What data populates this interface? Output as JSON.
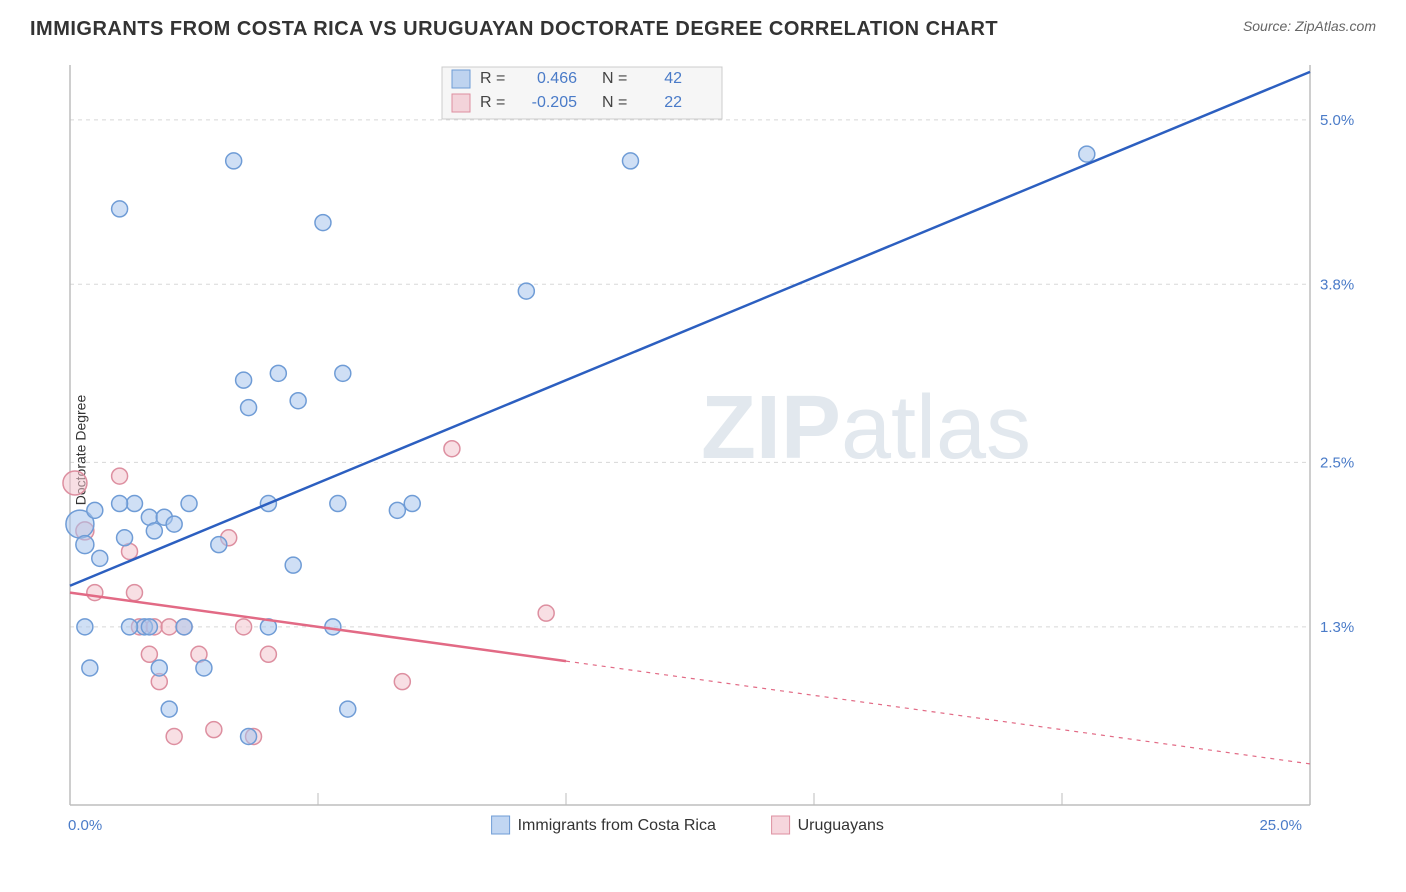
{
  "header": {
    "title": "IMMIGRANTS FROM COSTA RICA VS URUGUAYAN DOCTORATE DEGREE CORRELATION CHART",
    "source": "Source: ZipAtlas.com"
  },
  "watermark": {
    "text_bold": "ZIP",
    "text_light": "atlas"
  },
  "chart": {
    "type": "scatter_with_trend",
    "ylabel": "Doctorate Degree",
    "xlim": [
      0,
      25
    ],
    "ylim": [
      0,
      5.4
    ],
    "x_tick_left": "0.0%",
    "x_tick_right": "25.0%",
    "y_ticks": [
      {
        "value": 1.3,
        "label": "1.3%"
      },
      {
        "value": 2.5,
        "label": "2.5%"
      },
      {
        "value": 3.8,
        "label": "3.8%"
      },
      {
        "value": 5.0,
        "label": "5.0%"
      }
    ],
    "x_gridlines_at": [
      5,
      10,
      15,
      20,
      25
    ],
    "background_color": "#ffffff",
    "grid_color": "#d8d8d8",
    "axis_color": "#bdbdbd",
    "series": {
      "costa_rica": {
        "label": "Immigrants from Costa Rica",
        "fill_color": "#a7c4ec",
        "stroke_color": "#6f9cd6",
        "line_color": "#2c5fc0",
        "R": "0.466",
        "N": "42",
        "trend": {
          "x1": 0,
          "y1": 1.6,
          "x2": 25,
          "y2": 5.35,
          "dashed_from_x": null
        },
        "points": [
          {
            "x": 0.2,
            "y": 2.05,
            "r": 14
          },
          {
            "x": 0.3,
            "y": 1.9,
            "r": 9
          },
          {
            "x": 0.5,
            "y": 2.15,
            "r": 8
          },
          {
            "x": 0.3,
            "y": 1.3,
            "r": 8
          },
          {
            "x": 0.4,
            "y": 1.0,
            "r": 8
          },
          {
            "x": 0.6,
            "y": 1.8,
            "r": 8
          },
          {
            "x": 1.0,
            "y": 4.35,
            "r": 8
          },
          {
            "x": 1.3,
            "y": 2.2,
            "r": 8
          },
          {
            "x": 1.6,
            "y": 2.1,
            "r": 8
          },
          {
            "x": 1.7,
            "y": 2.0,
            "r": 8
          },
          {
            "x": 1.9,
            "y": 2.1,
            "r": 8
          },
          {
            "x": 1.5,
            "y": 1.3,
            "r": 8
          },
          {
            "x": 1.6,
            "y": 1.3,
            "r": 8
          },
          {
            "x": 1.8,
            "y": 1.0,
            "r": 8
          },
          {
            "x": 2.0,
            "y": 0.7,
            "r": 8
          },
          {
            "x": 2.3,
            "y": 1.3,
            "r": 8
          },
          {
            "x": 2.4,
            "y": 2.2,
            "r": 8
          },
          {
            "x": 2.7,
            "y": 1.0,
            "r": 8
          },
          {
            "x": 3.0,
            "y": 1.9,
            "r": 8
          },
          {
            "x": 3.3,
            "y": 4.7,
            "r": 8
          },
          {
            "x": 3.5,
            "y": 3.1,
            "r": 8
          },
          {
            "x": 3.6,
            "y": 2.9,
            "r": 8
          },
          {
            "x": 3.6,
            "y": 0.5,
            "r": 8
          },
          {
            "x": 4.0,
            "y": 1.3,
            "r": 8
          },
          {
            "x": 4.0,
            "y": 2.2,
            "r": 8
          },
          {
            "x": 4.2,
            "y": 3.15,
            "r": 8
          },
          {
            "x": 4.5,
            "y": 1.75,
            "r": 8
          },
          {
            "x": 4.6,
            "y": 2.95,
            "r": 8
          },
          {
            "x": 5.1,
            "y": 4.25,
            "r": 8
          },
          {
            "x": 5.3,
            "y": 1.3,
            "r": 8
          },
          {
            "x": 5.4,
            "y": 2.2,
            "r": 8
          },
          {
            "x": 5.5,
            "y": 3.15,
            "r": 8
          },
          {
            "x": 5.6,
            "y": 0.7,
            "r": 8
          },
          {
            "x": 6.6,
            "y": 2.15,
            "r": 8
          },
          {
            "x": 6.9,
            "y": 2.2,
            "r": 8
          },
          {
            "x": 9.2,
            "y": 3.75,
            "r": 8
          },
          {
            "x": 11.3,
            "y": 4.7,
            "r": 8
          },
          {
            "x": 20.5,
            "y": 4.75,
            "r": 8
          },
          {
            "x": 1.1,
            "y": 1.95,
            "r": 8
          },
          {
            "x": 1.0,
            "y": 2.2,
            "r": 8
          },
          {
            "x": 2.1,
            "y": 2.05,
            "r": 8
          },
          {
            "x": 1.2,
            "y": 1.3,
            "r": 8
          }
        ]
      },
      "uruguayans": {
        "label": "Uruguayans",
        "fill_color": "#f2c5ce",
        "stroke_color": "#dd8fa0",
        "line_color": "#e26a85",
        "R": "-0.205",
        "N": "22",
        "trend": {
          "x1": 0,
          "y1": 1.55,
          "x2": 25,
          "y2": 0.3,
          "dashed_from_x": 10
        },
        "points": [
          {
            "x": 0.1,
            "y": 2.35,
            "r": 12
          },
          {
            "x": 0.3,
            "y": 2.0,
            "r": 9
          },
          {
            "x": 0.5,
            "y": 1.55,
            "r": 8
          },
          {
            "x": 1.0,
            "y": 2.4,
            "r": 8
          },
          {
            "x": 1.2,
            "y": 1.85,
            "r": 8
          },
          {
            "x": 1.3,
            "y": 1.55,
            "r": 8
          },
          {
            "x": 1.4,
            "y": 1.3,
            "r": 8
          },
          {
            "x": 1.6,
            "y": 1.1,
            "r": 8
          },
          {
            "x": 1.7,
            "y": 1.3,
            "r": 8
          },
          {
            "x": 1.8,
            "y": 0.9,
            "r": 8
          },
          {
            "x": 2.0,
            "y": 1.3,
            "r": 8
          },
          {
            "x": 2.1,
            "y": 0.5,
            "r": 8
          },
          {
            "x": 2.3,
            "y": 1.3,
            "r": 8
          },
          {
            "x": 2.6,
            "y": 1.1,
            "r": 8
          },
          {
            "x": 3.2,
            "y": 1.95,
            "r": 8
          },
          {
            "x": 3.5,
            "y": 1.3,
            "r": 8
          },
          {
            "x": 3.7,
            "y": 0.5,
            "r": 8
          },
          {
            "x": 4.0,
            "y": 1.1,
            "r": 8
          },
          {
            "x": 6.7,
            "y": 0.9,
            "r": 8
          },
          {
            "x": 7.7,
            "y": 2.6,
            "r": 8
          },
          {
            "x": 9.6,
            "y": 1.4,
            "r": 8
          },
          {
            "x": 2.9,
            "y": 0.55,
            "r": 8
          }
        ]
      }
    }
  },
  "legend_bottom": {
    "item1": "Immigrants from Costa Rica",
    "item2": "Uruguayans"
  }
}
